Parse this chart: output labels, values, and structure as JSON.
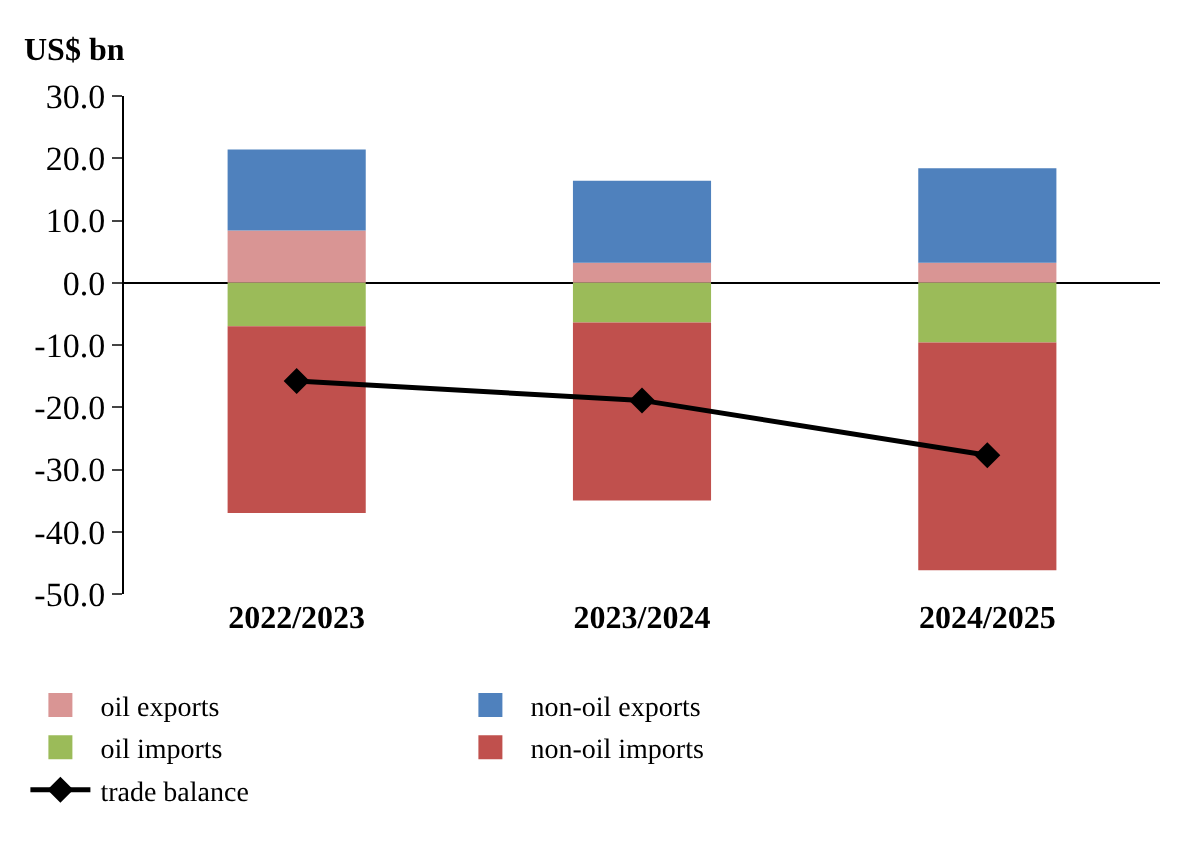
{
  "chart_data": {
    "type": "bar",
    "stacked": true,
    "ylabel": "US$ bn",
    "categories": [
      "2022/2023",
      "2023/2024",
      "2024/2025"
    ],
    "series": [
      {
        "name": "oil exports",
        "color": "#d99594",
        "values": [
          8.4,
          3.2,
          3.2
        ]
      },
      {
        "name": "non-oil exports",
        "color": "#4f81bd",
        "values": [
          13.0,
          13.2,
          15.2
        ]
      },
      {
        "name": "oil imports",
        "color": "#9bbb59",
        "values": [
          -7.0,
          -6.4,
          -9.6
        ]
      },
      {
        "name": "non-oil imports",
        "color": "#c0504d",
        "values": [
          -30.0,
          -28.6,
          -36.6
        ]
      },
      {
        "name": "trade balance",
        "type": "line",
        "color": "#000000",
        "marker": "diamond",
        "values": [
          -15.8,
          -18.9,
          -27.7
        ]
      }
    ],
    "ylim": [
      -50,
      30
    ],
    "yticks": [
      {
        "value": -50,
        "label": "-50.0"
      },
      {
        "value": -40,
        "label": "-40.0"
      },
      {
        "value": -30,
        "label": "-30.0"
      },
      {
        "value": -20,
        "label": "-20.0"
      },
      {
        "value": -10,
        "label": "-10.0"
      },
      {
        "value": 0,
        "label": "0.0"
      },
      {
        "value": 10,
        "label": "10.0"
      },
      {
        "value": 20,
        "label": "20.0"
      },
      {
        "value": 30,
        "label": "30.0"
      }
    ],
    "legend": "bottom"
  }
}
